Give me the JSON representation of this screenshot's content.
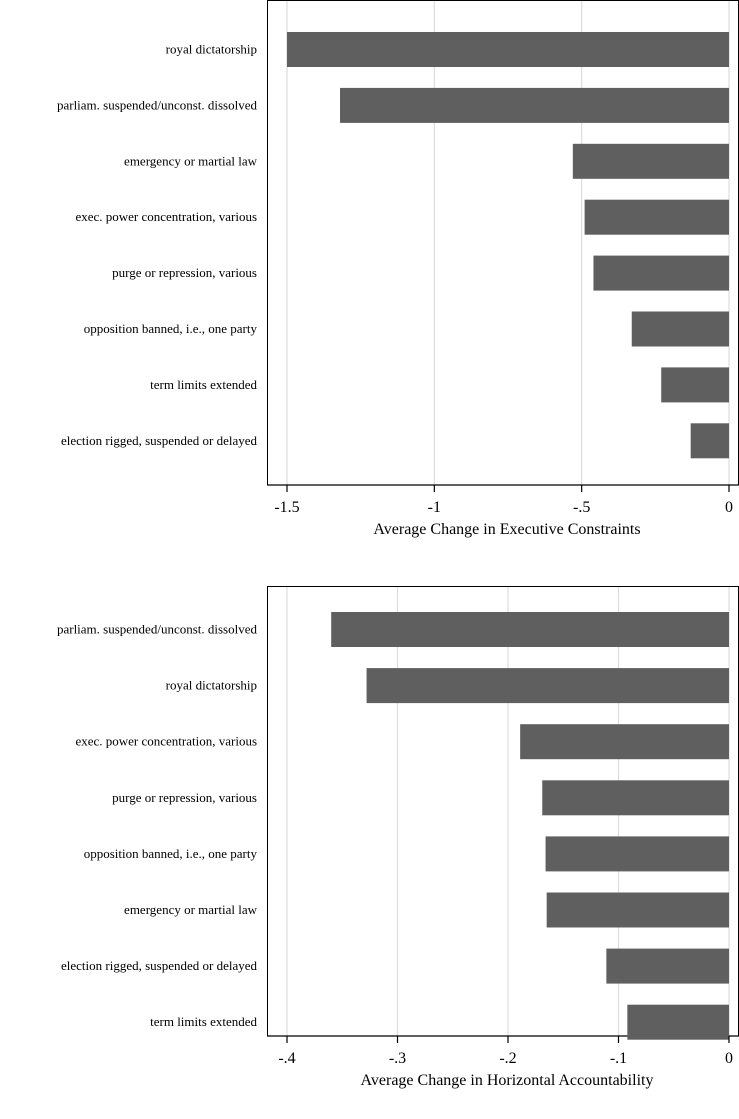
{
  "chart_data": [
    {
      "type": "bar",
      "orientation": "horizontal",
      "categories": [
        "royal dictatorship",
        "parliam. suspended/unconst. dissolved",
        "emergency or martial law",
        "exec. power concentration, various",
        "purge or repression, various",
        "opposition banned, i.e., one party",
        "term limits extended",
        "election rigged, suspended or delayed"
      ],
      "values": [
        -1.5,
        -1.32,
        -0.53,
        -0.49,
        -0.46,
        -0.33,
        -0.23,
        -0.13
      ],
      "xlabel": "Average Change in Executive Constraints",
      "xlim": [
        -1.5,
        0
      ],
      "xticks": [
        -1.5,
        -1,
        -0.5,
        0
      ],
      "xtick_labels": [
        "-1.5",
        "-1",
        "-.5",
        "0"
      ],
      "grid": true,
      "bar_color": "#5f5f5f"
    },
    {
      "type": "bar",
      "orientation": "horizontal",
      "categories": [
        "parliam. suspended/unconst. dissolved",
        "royal dictatorship",
        "exec. power concentration, various",
        "purge or repression, various",
        "opposition banned, i.e., one party",
        "emergency or martial law",
        "election rigged, suspended or delayed",
        "term limits extended"
      ],
      "values": [
        -0.36,
        -0.328,
        -0.189,
        -0.169,
        -0.166,
        -0.165,
        -0.111,
        -0.092
      ],
      "xlabel": "Average Change in Horizontal Accountability",
      "xlim": [
        -0.4,
        0
      ],
      "xticks": [
        -0.4,
        -0.3,
        -0.2,
        -0.1,
        0
      ],
      "xtick_labels": [
        "-.4",
        "-.3",
        "-.2",
        "-.1",
        "0"
      ],
      "grid": true,
      "bar_color": "#5f5f5f"
    }
  ]
}
